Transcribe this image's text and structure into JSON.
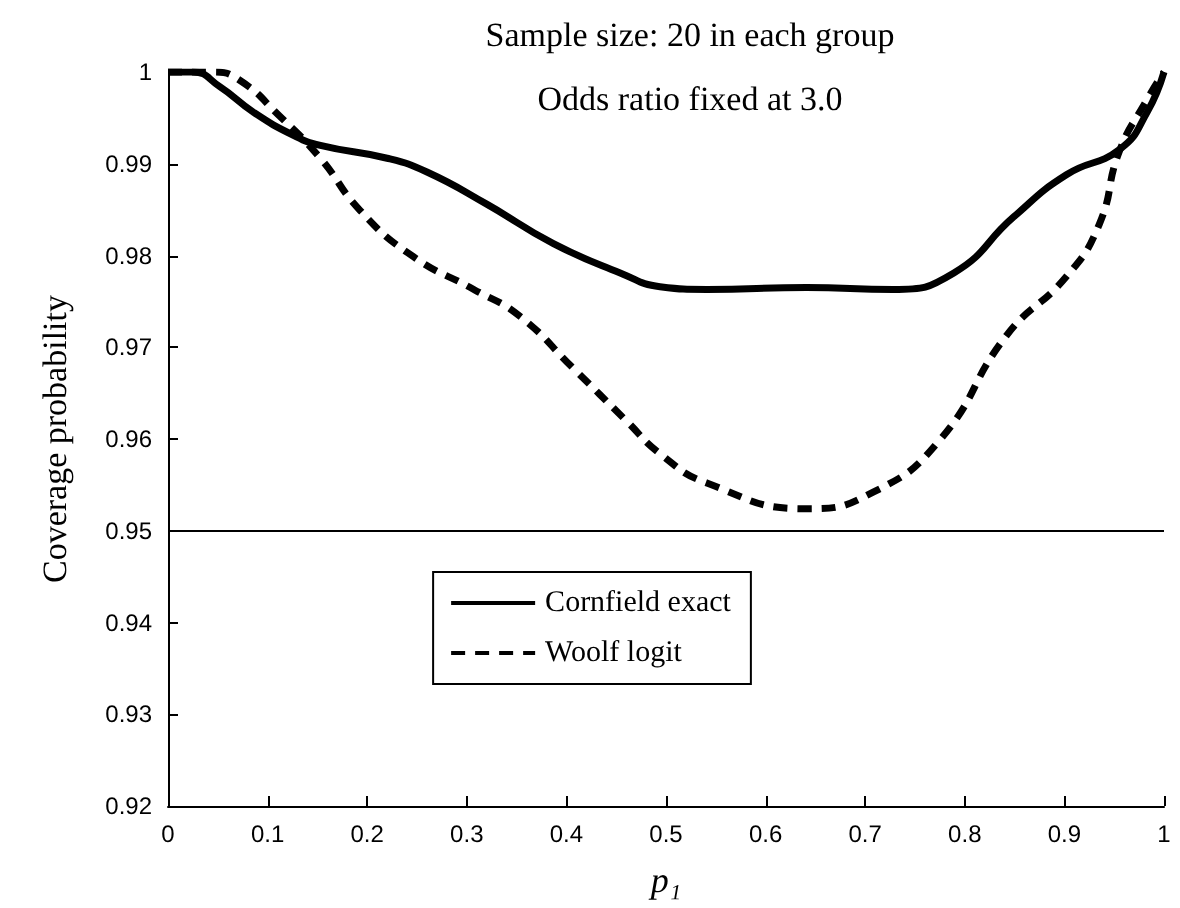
{
  "chart_data": {
    "type": "line",
    "title": "Sample size: 20 in each group",
    "subtitle": "Odds ratio fixed at 3.0",
    "xlabel": "p₁",
    "ylabel": "Coverage probability",
    "xlim": [
      0,
      1
    ],
    "xticks": [
      0,
      0.1,
      0.2,
      0.3,
      0.4,
      0.5,
      0.6,
      0.7,
      0.8,
      0.9,
      1
    ],
    "ylim": [
      0.92,
      1
    ],
    "yticks": [
      0.92,
      0.93,
      0.94,
      0.95,
      0.96,
      0.97,
      0.98,
      0.99,
      1
    ],
    "grid": false,
    "legend": "bottom",
    "marker": "none",
    "ref_lines": [
      {
        "axis": "y",
        "value": 0.95,
        "color": "#000000"
      }
    ],
    "series": [
      {
        "name": "Cornfield exact",
        "color": "#000000",
        "line_style": "solid",
        "x": [
          0,
          0.025,
          0.052,
          0.086,
          0.126,
          0.153,
          0.22,
          0.26,
          0.32,
          0.387,
          0.454,
          0.494,
          0.541,
          0.641,
          0.728,
          0.789,
          0.849,
          0.902,
          0.956,
          0.983,
          1
        ],
        "values": [
          1,
          1,
          0.9984,
          0.9956,
          0.9931,
          0.992,
          0.9906,
          0.9891,
          0.9856,
          0.9813,
          0.9781,
          0.9766,
          0.9763,
          0.9765,
          0.9763,
          0.9781,
          0.9842,
          0.9888,
          0.9916,
          0.9956,
          1
        ]
      },
      {
        "name": "Woolf logit",
        "color": "#000000",
        "line_style": "dashed",
        "x": [
          0,
          0.045,
          0.072,
          0.112,
          0.153,
          0.193,
          0.246,
          0.307,
          0.353,
          0.407,
          0.46,
          0.494,
          0.541,
          0.641,
          0.708,
          0.775,
          0.842,
          0.902,
          0.935,
          0.955,
          0.983,
          1
        ],
        "values": [
          1,
          1,
          0.9991,
          0.9952,
          0.9906,
          0.9849,
          0.9799,
          0.9763,
          0.9734,
          0.9677,
          0.962,
          0.9584,
          0.9552,
          0.9524,
          0.9542,
          0.9599,
          0.9713,
          0.9777,
          0.9834,
          0.9913,
          0.997,
          1
        ]
      }
    ]
  }
}
